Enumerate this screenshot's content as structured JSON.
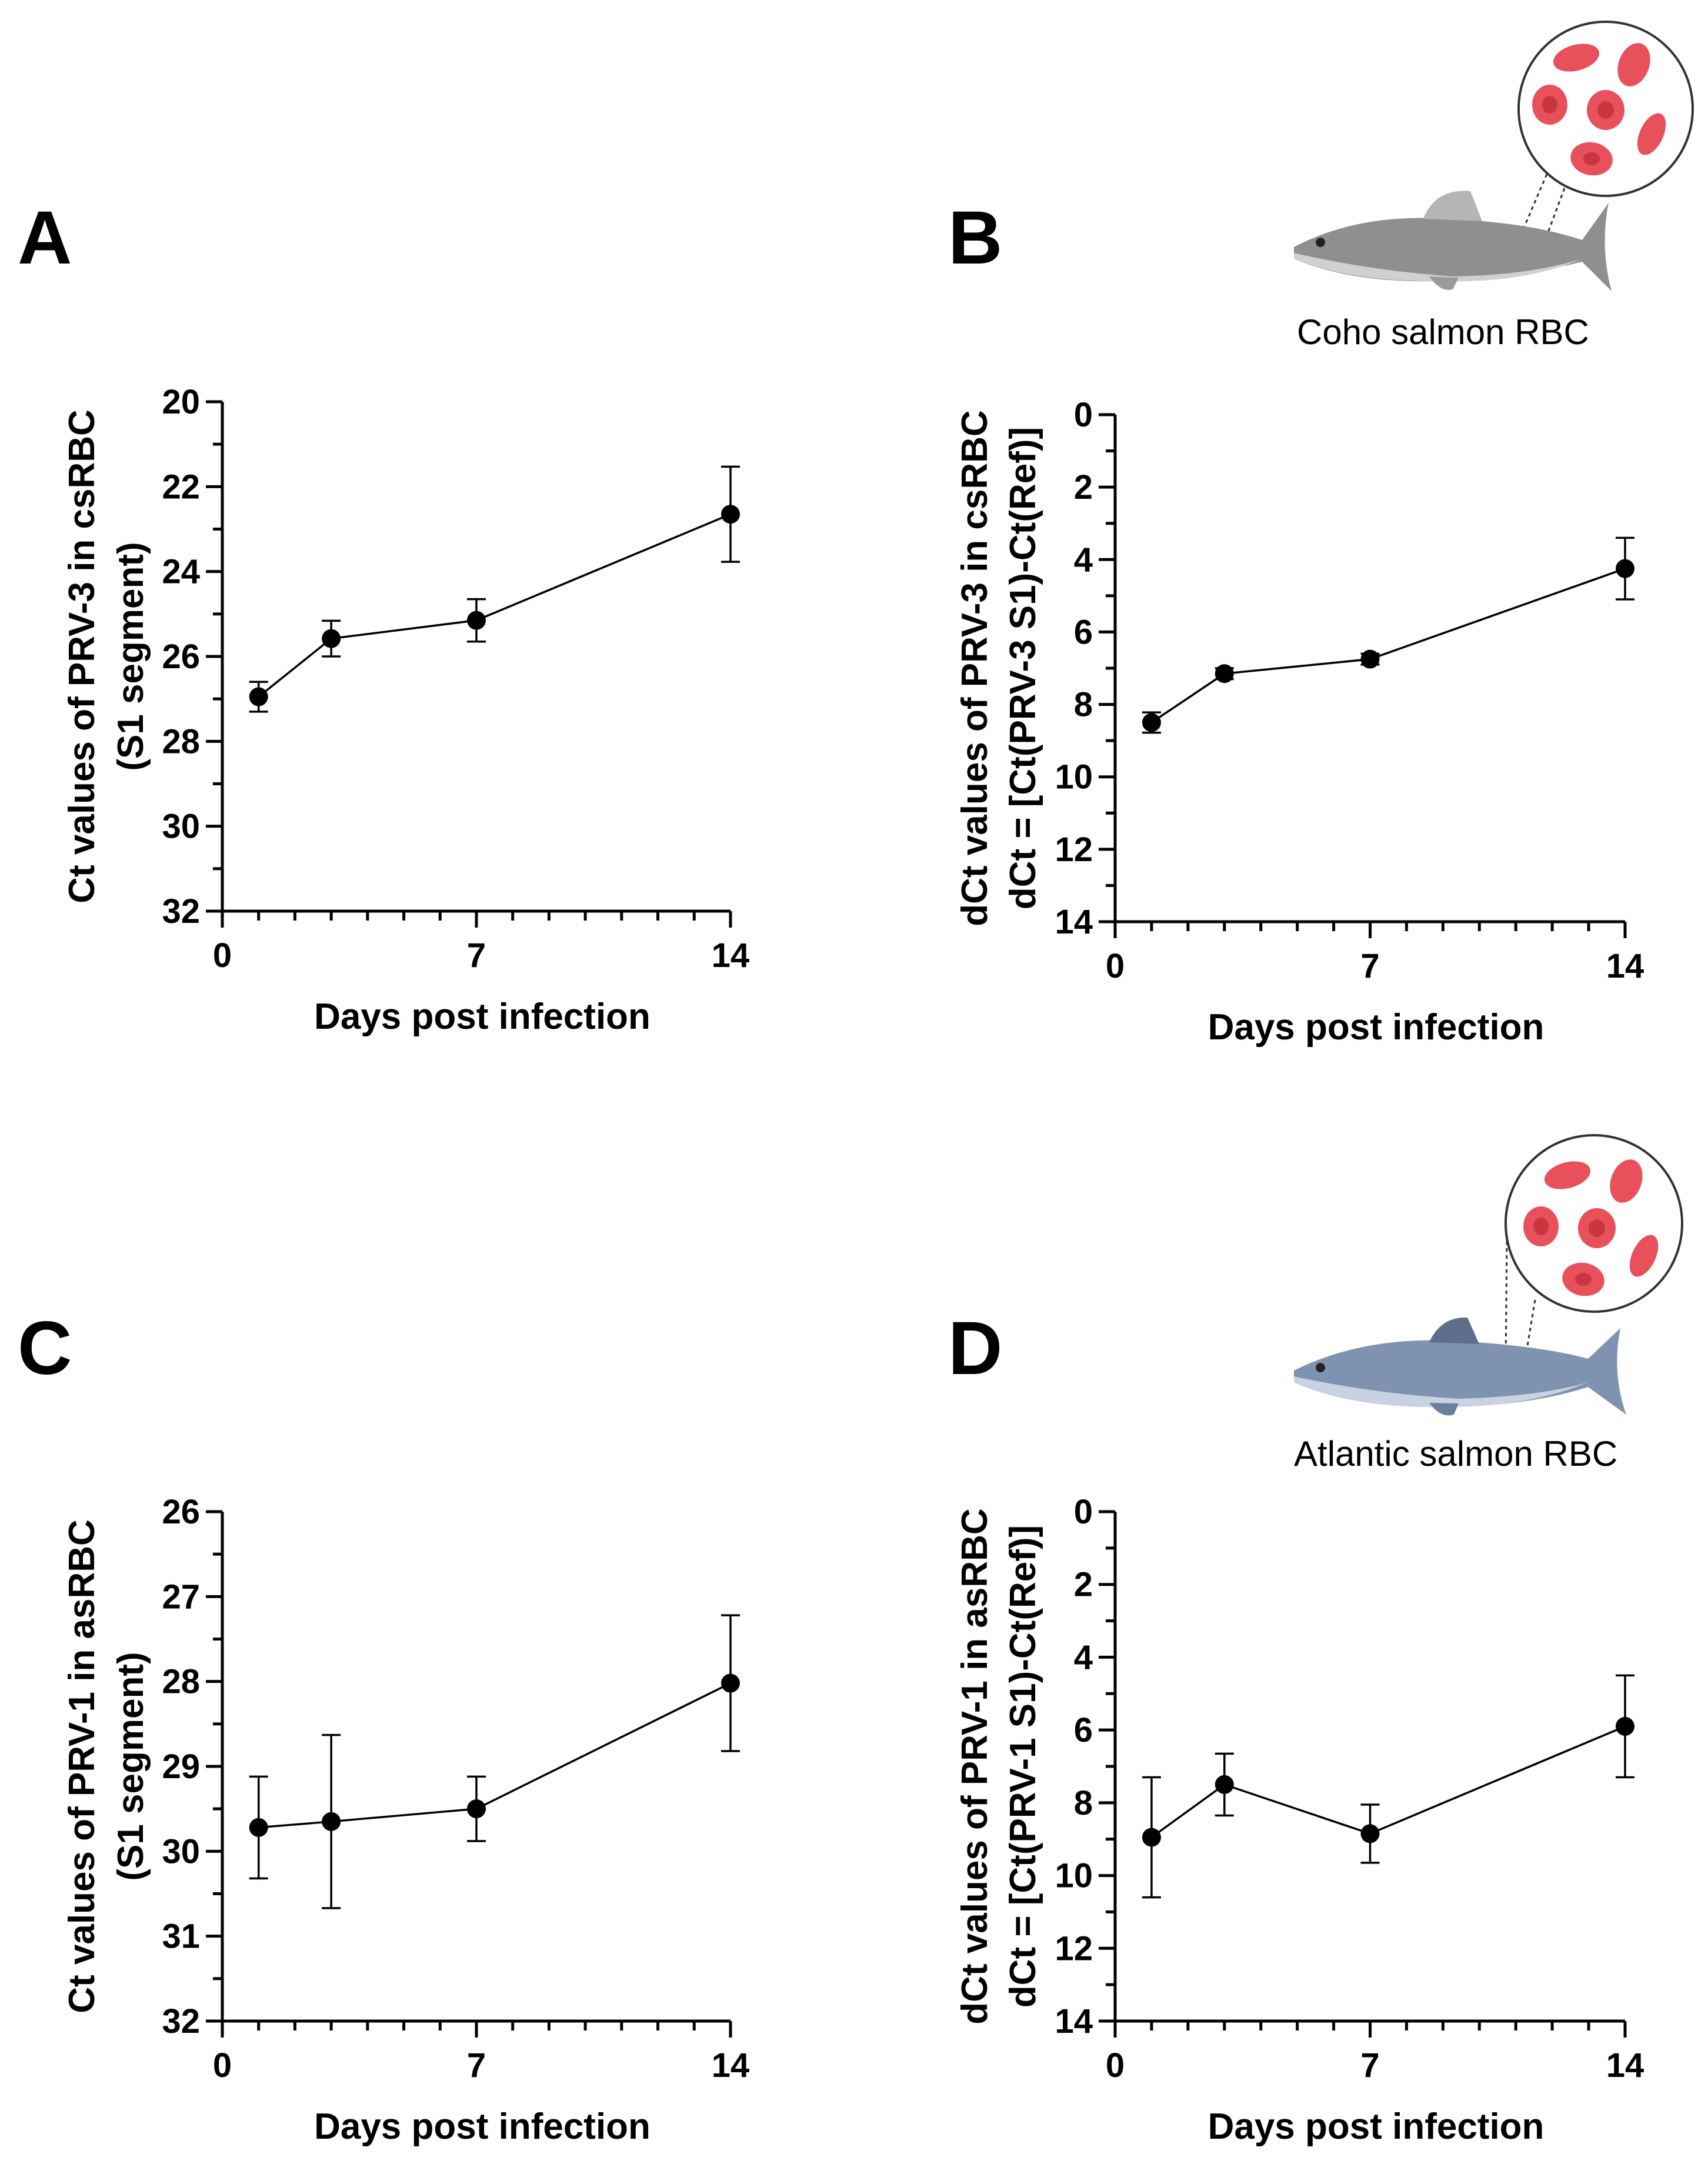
{
  "chart_data": [
    {
      "id": "A",
      "type": "line",
      "panel_label": "A",
      "xlabel": "Days post infection",
      "ylabel_lines": [
        "Ct values of PRV-3 in csRBC",
        "(S1 segment)"
      ],
      "x": [
        1,
        3,
        7,
        14
      ],
      "y": [
        26.95,
        25.58,
        25.15,
        22.65
      ],
      "err": [
        0.35,
        0.42,
        0.5,
        1.12
      ],
      "xlim": [
        0,
        14
      ],
      "ylim": [
        32,
        20
      ],
      "y_inverted": true,
      "x_ticks": [
        0,
        7,
        14
      ],
      "x_minor_step": 1,
      "y_ticks": [
        20,
        22,
        24,
        26,
        28,
        30,
        32
      ],
      "y_minor_step": 1
    },
    {
      "id": "B",
      "type": "line",
      "panel_label": "B",
      "xlabel": "Days post infection",
      "ylabel_lines": [
        "dCt values of PRV-3 in csRBC",
        "dCt = [Ct(PRV-3 S1)-Ct(Ref)]"
      ],
      "x": [
        1,
        3,
        7,
        14
      ],
      "y": [
        8.5,
        7.15,
        6.75,
        4.25
      ],
      "err": [
        0.28,
        0.15,
        0.15,
        0.85
      ],
      "xlim": [
        0,
        14
      ],
      "ylim": [
        14,
        0
      ],
      "y_inverted": false,
      "x_ticks": [
        0,
        7,
        14
      ],
      "x_minor_step": 1,
      "y_ticks": [
        0,
        2,
        4,
        6,
        8,
        10,
        12,
        14
      ],
      "y_minor_step": 1
    },
    {
      "id": "C",
      "type": "line",
      "panel_label": "C",
      "xlabel": "Days post infection",
      "ylabel_lines": [
        "Ct values of PRV-1 in asRBC",
        "(S1 segment)"
      ],
      "x": [
        1,
        3,
        7,
        14
      ],
      "y": [
        29.72,
        29.65,
        29.5,
        28.02
      ],
      "err": [
        0.6,
        1.02,
        0.38,
        0.8
      ],
      "xlim": [
        0,
        14
      ],
      "ylim": [
        32,
        26
      ],
      "y_inverted": true,
      "x_ticks": [
        0,
        7,
        14
      ],
      "x_minor_step": 1,
      "y_ticks": [
        26,
        27,
        28,
        29,
        30,
        31,
        32
      ],
      "y_minor_step": 0.5
    },
    {
      "id": "D",
      "type": "line",
      "panel_label": "D",
      "xlabel": "Days post infection",
      "ylabel_lines": [
        "dCt values of PRV-1 in asRBC",
        "dCt = [Ct(PRV-1 S1)-Ct(Ref)]"
      ],
      "x": [
        1,
        3,
        7,
        14
      ],
      "y": [
        8.95,
        7.5,
        8.85,
        5.9
      ],
      "err": [
        1.65,
        0.85,
        0.8,
        1.4
      ],
      "xlim": [
        0,
        14
      ],
      "ylim": [
        14,
        0
      ],
      "y_inverted": false,
      "x_ticks": [
        0,
        7,
        14
      ],
      "x_minor_step": 1,
      "y_ticks": [
        0,
        2,
        4,
        6,
        8,
        10,
        12,
        14
      ],
      "y_minor_step": 1
    }
  ],
  "illustrations": {
    "coho": {
      "caption": "Coho salmon RBC"
    },
    "atlantic": {
      "caption": "Atlantic salmon RBC"
    }
  },
  "colors": {
    "rbc": "#e8505b",
    "rbc_center": "#c9363f",
    "coho_body": "#8f8f8f",
    "atlantic_body": "#7f93b0"
  }
}
